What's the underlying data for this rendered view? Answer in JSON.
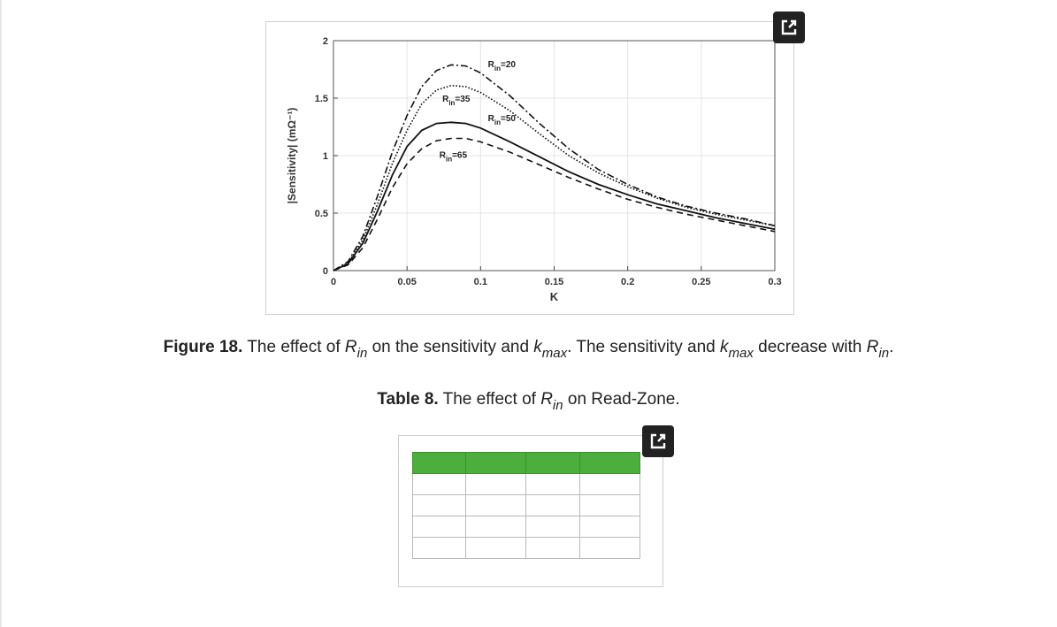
{
  "figure": {
    "label": "Figure 18.",
    "caption_parts": {
      "t1": " The effect of ",
      "r1": "R",
      "r1_sub": "in",
      "t2": " on the sensitivity and ",
      "k1": "k",
      "k1_sub": "max",
      "t3": ". The sensitivity and ",
      "k2": "k",
      "k2_sub": "max",
      "t4": " decrease with ",
      "r2": "R",
      "r2_sub": "in",
      "t5": "."
    }
  },
  "table": {
    "label": "Table 8.",
    "caption_parts": {
      "t1": " The effect of ",
      "r": "R",
      "r_sub": "in",
      "t2": " on Read-Zone."
    },
    "rows": 5,
    "columns": 4,
    "header_color": "#4cae3c"
  },
  "icons": {
    "open_figure": "external-link-icon",
    "open_table": "external-link-icon"
  },
  "chart_data": {
    "type": "line",
    "xlabel": "K",
    "ylabel": "|Sensitivity| (mΩ⁻¹)",
    "xlim": [
      0,
      0.3
    ],
    "ylim": [
      0,
      2
    ],
    "x_ticks": [
      "0",
      "0.05",
      "0.1",
      "0.15",
      "0.2",
      "0.25",
      "0.3"
    ],
    "y_ticks": [
      "0",
      "0.5",
      "1",
      "1.5",
      "2"
    ],
    "series": [
      {
        "name": "Rin=20",
        "label_main": "R",
        "label_sub": "in",
        "label_value": "=20",
        "label_at": [
          0.105,
          1.77
        ],
        "style": "dashdot",
        "points": [
          [
            0,
            0
          ],
          [
            0.01,
            0.08
          ],
          [
            0.02,
            0.3
          ],
          [
            0.03,
            0.65
          ],
          [
            0.04,
            1.03
          ],
          [
            0.05,
            1.35
          ],
          [
            0.06,
            1.6
          ],
          [
            0.07,
            1.74
          ],
          [
            0.08,
            1.79
          ],
          [
            0.09,
            1.78
          ],
          [
            0.1,
            1.72
          ],
          [
            0.12,
            1.52
          ],
          [
            0.14,
            1.28
          ],
          [
            0.16,
            1.06
          ],
          [
            0.18,
            0.88
          ],
          [
            0.2,
            0.75
          ],
          [
            0.22,
            0.64
          ],
          [
            0.24,
            0.56
          ],
          [
            0.26,
            0.5
          ],
          [
            0.28,
            0.45
          ],
          [
            0.3,
            0.39
          ]
        ]
      },
      {
        "name": "Rin=35",
        "label_main": "R",
        "label_sub": "in",
        "label_value": "=35",
        "label_at": [
          0.074,
          1.47
        ],
        "style": "dotted",
        "points": [
          [
            0,
            0
          ],
          [
            0.01,
            0.07
          ],
          [
            0.02,
            0.27
          ],
          [
            0.03,
            0.58
          ],
          [
            0.04,
            0.93
          ],
          [
            0.05,
            1.22
          ],
          [
            0.06,
            1.45
          ],
          [
            0.07,
            1.57
          ],
          [
            0.08,
            1.61
          ],
          [
            0.09,
            1.6
          ],
          [
            0.1,
            1.55
          ],
          [
            0.12,
            1.39
          ],
          [
            0.14,
            1.19
          ],
          [
            0.16,
            1.0
          ],
          [
            0.18,
            0.85
          ],
          [
            0.2,
            0.73
          ],
          [
            0.22,
            0.63
          ],
          [
            0.24,
            0.55
          ],
          [
            0.26,
            0.49
          ],
          [
            0.28,
            0.44
          ],
          [
            0.3,
            0.39
          ]
        ]
      },
      {
        "name": "Rin=50",
        "label_main": "R",
        "label_sub": "in",
        "label_value": "=50",
        "label_at": [
          0.105,
          1.3
        ],
        "style": "solid",
        "points": [
          [
            0,
            0
          ],
          [
            0.01,
            0.06
          ],
          [
            0.02,
            0.24
          ],
          [
            0.03,
            0.52
          ],
          [
            0.04,
            0.83
          ],
          [
            0.05,
            1.08
          ],
          [
            0.06,
            1.22
          ],
          [
            0.07,
            1.28
          ],
          [
            0.08,
            1.29
          ],
          [
            0.09,
            1.28
          ],
          [
            0.1,
            1.24
          ],
          [
            0.12,
            1.12
          ],
          [
            0.14,
            0.99
          ],
          [
            0.16,
            0.86
          ],
          [
            0.18,
            0.75
          ],
          [
            0.2,
            0.66
          ],
          [
            0.22,
            0.58
          ],
          [
            0.24,
            0.52
          ],
          [
            0.26,
            0.46
          ],
          [
            0.28,
            0.41
          ],
          [
            0.3,
            0.36
          ]
        ]
      },
      {
        "name": "Rin=65",
        "label_main": "R",
        "label_sub": "in",
        "label_value": "=65",
        "label_at": [
          0.072,
          0.98
        ],
        "style": "dashed",
        "points": [
          [
            0,
            0
          ],
          [
            0.01,
            0.05
          ],
          [
            0.02,
            0.2
          ],
          [
            0.03,
            0.45
          ],
          [
            0.04,
            0.72
          ],
          [
            0.05,
            0.93
          ],
          [
            0.06,
            1.06
          ],
          [
            0.07,
            1.13
          ],
          [
            0.08,
            1.15
          ],
          [
            0.09,
            1.15
          ],
          [
            0.1,
            1.12
          ],
          [
            0.12,
            1.03
          ],
          [
            0.14,
            0.92
          ],
          [
            0.16,
            0.81
          ],
          [
            0.18,
            0.71
          ],
          [
            0.2,
            0.62
          ],
          [
            0.22,
            0.55
          ],
          [
            0.24,
            0.49
          ],
          [
            0.26,
            0.44
          ],
          [
            0.28,
            0.39
          ],
          [
            0.3,
            0.34
          ]
        ]
      }
    ]
  }
}
